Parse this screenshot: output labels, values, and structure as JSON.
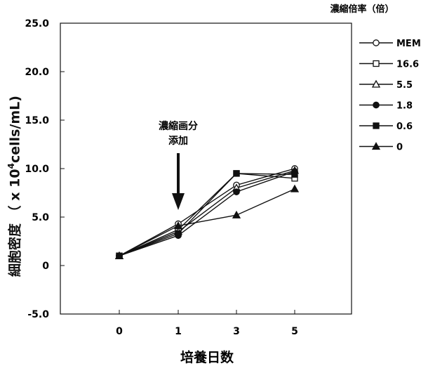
{
  "chart_data": {
    "type": "line",
    "title": "",
    "xlabel": "培養日数",
    "ylabel": {
      "prefix": "細胞密度 （ x 10",
      "sup": "4",
      "suffix": "cells/mL)"
    },
    "categories": [
      "0",
      "1",
      "3",
      "5"
    ],
    "y_ticks": [
      "25.0",
      "20.0",
      "15.0",
      "10.0",
      "5.0",
      "0",
      "-5.0"
    ],
    "ylim": [
      -5,
      25
    ],
    "legend_title": "濃縮倍率（倍）",
    "legend_position": "right",
    "annotation": {
      "lines": [
        "濃縮画分",
        "添加"
      ],
      "arrow_at_x": "1"
    },
    "series": [
      {
        "name": "MEM",
        "marker": "circle-open",
        "values": [
          1.0,
          4.3,
          8.3,
          10.0
        ]
      },
      {
        "name": "16.6",
        "marker": "square-open",
        "values": [
          1.0,
          3.7,
          9.5,
          9.0
        ]
      },
      {
        "name": "5.5",
        "marker": "triangle-open",
        "values": [
          1.0,
          3.5,
          8.0,
          9.8
        ]
      },
      {
        "name": "1.8",
        "marker": "circle-filled",
        "values": [
          1.0,
          3.1,
          7.6,
          9.7
        ]
      },
      {
        "name": "0.6",
        "marker": "square-filled",
        "values": [
          1.0,
          3.3,
          9.5,
          9.4
        ]
      },
      {
        "name": "0",
        "marker": "triangle-filled",
        "values": [
          1.0,
          4.1,
          5.2,
          7.9
        ]
      }
    ],
    "grid": false
  }
}
